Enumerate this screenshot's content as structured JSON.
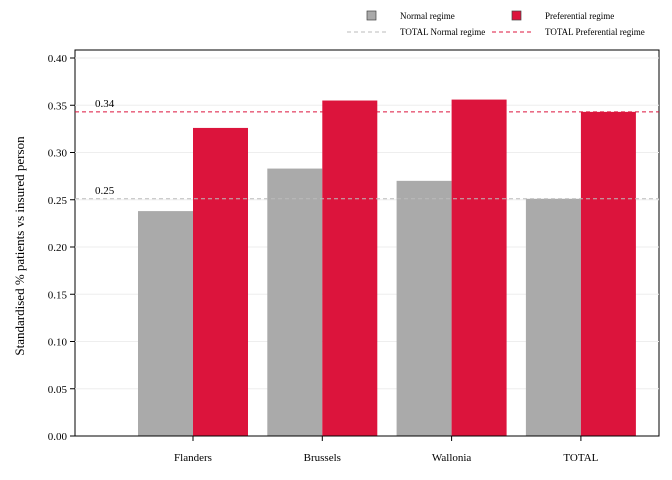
{
  "chart_data": {
    "type": "bar",
    "title": "",
    "xlabel": "",
    "ylabel": "Standardised % patients vs insured person",
    "ylim": [
      0,
      0.4
    ],
    "yticks": [
      "0.00",
      "0.05",
      "0.10",
      "0.15",
      "0.20",
      "0.25",
      "0.30",
      "0.35",
      "0.40"
    ],
    "categories": [
      "Flanders",
      "Brussels",
      "Wallonia",
      "TOTAL"
    ],
    "series": [
      {
        "name": "Normal regime",
        "color": "#aaaaaa",
        "values": [
          0.238,
          0.283,
          0.27,
          0.251
        ]
      },
      {
        "name": "Preferential regime",
        "color": "#dc143c",
        "values": [
          0.326,
          0.355,
          0.356,
          0.343
        ]
      }
    ],
    "reference_lines": [
      {
        "name": "TOTAL Normal regime",
        "value": 0.251,
        "label": "0.25",
        "color": "#bbbbbb",
        "style": "dashed"
      },
      {
        "name": "TOTAL Preferential regime",
        "value": 0.343,
        "label": "0.34",
        "color": "#dc143c",
        "style": "dashed"
      }
    ],
    "legend": "top",
    "grid": true
  }
}
